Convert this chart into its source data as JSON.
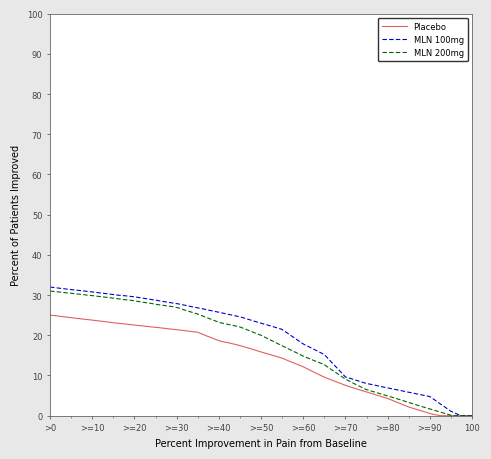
{
  "xlabel": "Percent Improvement in Pain from Baseline",
  "ylabel": "Percent of Patients Improved",
  "xlim": [
    0,
    100
  ],
  "ylim": [
    0,
    100
  ],
  "xtick_labels": [
    ">0",
    ">=10",
    ">=20",
    ">=30",
    ">=40",
    ">=50",
    ">=60",
    ">=70",
    ">=80",
    ">=90",
    "100"
  ],
  "xtick_positions": [
    0,
    10,
    20,
    30,
    40,
    50,
    60,
    70,
    80,
    90,
    100
  ],
  "ytick_values": [
    0,
    10,
    20,
    30,
    40,
    50,
    60,
    70,
    80,
    90,
    100
  ],
  "legend": [
    {
      "label": "Placebo",
      "color": "#e06060",
      "linestyle": "solid",
      "linewidth": 0.8
    },
    {
      "label": "MLN 100mg",
      "color": "#0000cc",
      "linestyle": "dashed",
      "linewidth": 0.8
    },
    {
      "label": "MLN 200mg",
      "color": "#006600",
      "linestyle": "dashed",
      "linewidth": 0.8
    }
  ],
  "background_color": "#e8e8e8",
  "plot_bg_color": "#ffffff",
  "spine_color": "#666666",
  "tick_color": "#444444",
  "label_fontsize": 7,
  "tick_fontsize": 6,
  "legend_fontsize": 6
}
